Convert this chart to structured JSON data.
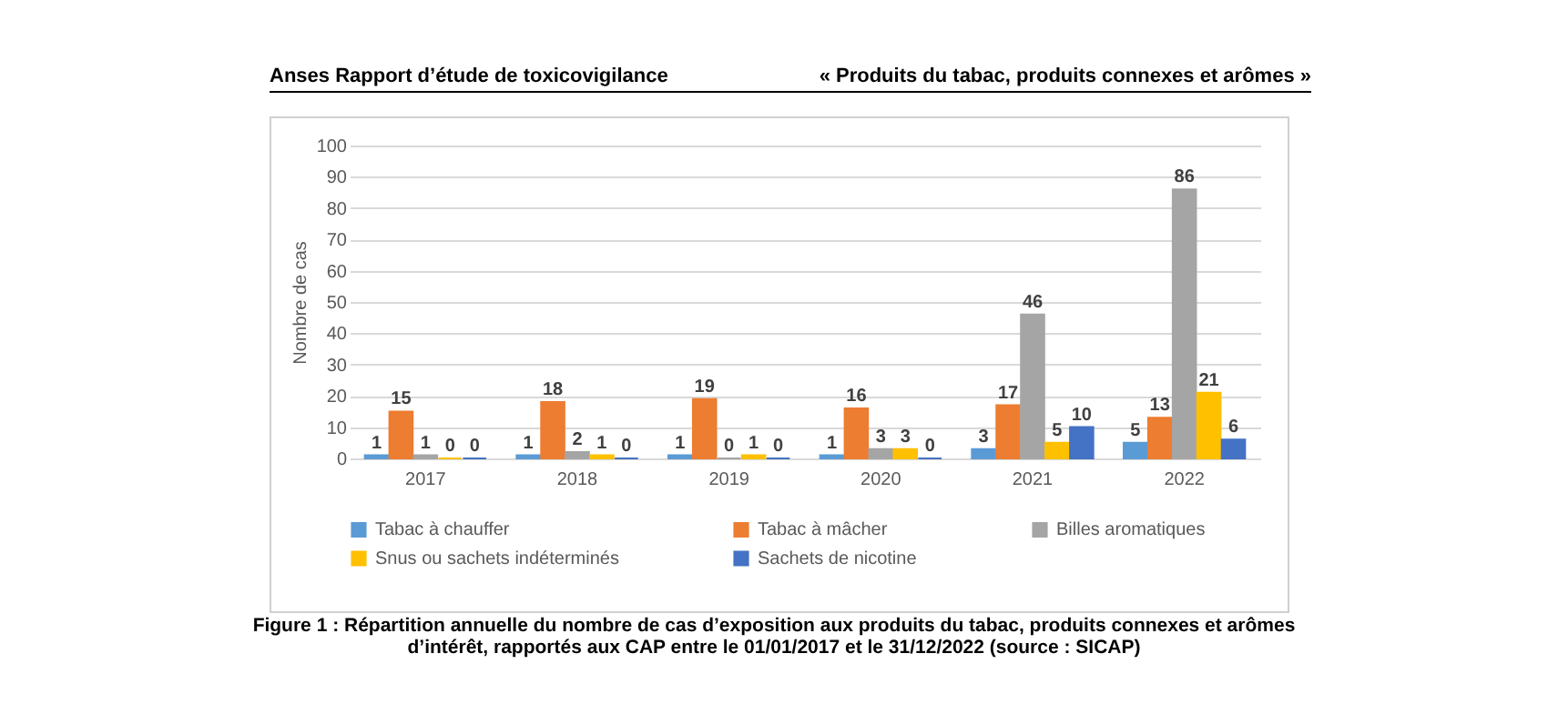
{
  "chart_data": {
    "type": "bar",
    "ylabel": "Nombre de cas",
    "categories": [
      "2017",
      "2018",
      "2019",
      "2020",
      "2021",
      "2022"
    ],
    "series": [
      {
        "name": "Tabac à chauffer",
        "color": "#5b9bd5",
        "values": [
          1,
          1,
          1,
          1,
          3,
          5
        ]
      },
      {
        "name": "Tabac à mâcher",
        "color": "#ed7d31",
        "values": [
          15,
          18,
          19,
          16,
          17,
          13
        ]
      },
      {
        "name": "Billes aromatiques",
        "color": "#a5a5a5",
        "values": [
          1,
          2,
          0,
          3,
          46,
          86
        ]
      },
      {
        "name": "Snus ou sachets indéterminés",
        "color": "#ffc000",
        "values": [
          0,
          1,
          1,
          3,
          5,
          21
        ]
      },
      {
        "name": "Sachets de nicotine",
        "color": "#4472c4",
        "values": [
          0,
          0,
          0,
          0,
          10,
          6
        ]
      }
    ],
    "ylim": [
      0,
      100
    ],
    "yticks": [
      0,
      10,
      20,
      30,
      40,
      50,
      60,
      70,
      80,
      90,
      100
    ],
    "grid": "y",
    "legend": "bottom",
    "data_labels": true,
    "annotations": [
      "Anses Rapport d’étude de toxicovigilance",
      "« Produits du tabac, produits connexes et arômes »",
      "Figure 1 : Répartition annuelle du nombre de cas d’exposition aux produits du tabac, produits connexes et arômes d’intérêt, rapportés aux CAP entre le 01/01/2017 et le 31/12/2022 (source : SICAP)"
    ]
  }
}
